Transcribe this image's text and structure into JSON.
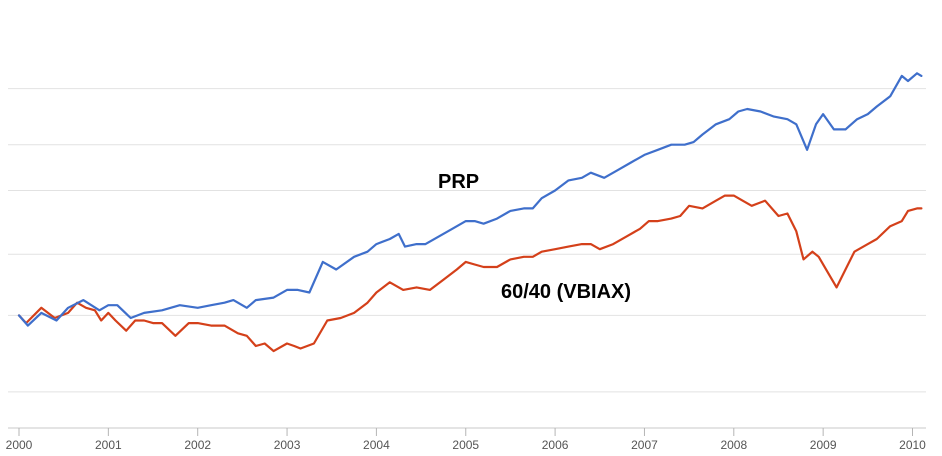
{
  "chart_data": {
    "type": "line",
    "title": "",
    "xlabel": "",
    "ylabel": "",
    "x_ticks": [
      "2000",
      "2001",
      "2002",
      "2003",
      "2004",
      "2005",
      "2006",
      "2007",
      "2008",
      "2009",
      "2010"
    ],
    "xlim": [
      2000.0,
      2010.15
    ],
    "ylim": [
      60,
      215
    ],
    "y_gridlines": [
      73,
      103,
      127,
      152,
      170,
      192
    ],
    "grid": true,
    "legend": "none (series labelled inline on the plot)",
    "series": [
      {
        "name": "PRP",
        "color": "#3f6fcb",
        "label": "PRP",
        "points": [
          [
            2000.0,
            103
          ],
          [
            2000.1,
            99
          ],
          [
            2000.25,
            104
          ],
          [
            2000.42,
            101
          ],
          [
            2000.55,
            106
          ],
          [
            2000.72,
            109
          ],
          [
            2000.9,
            105
          ],
          [
            2001.0,
            107
          ],
          [
            2001.1,
            107
          ],
          [
            2001.25,
            102
          ],
          [
            2001.4,
            104
          ],
          [
            2001.6,
            105
          ],
          [
            2001.8,
            107
          ],
          [
            2002.0,
            106
          ],
          [
            2002.15,
            107
          ],
          [
            2002.3,
            108
          ],
          [
            2002.4,
            109
          ],
          [
            2002.55,
            106
          ],
          [
            2002.65,
            109
          ],
          [
            2002.85,
            110
          ],
          [
            2003.0,
            113
          ],
          [
            2003.12,
            113
          ],
          [
            2003.25,
            112
          ],
          [
            2003.4,
            124
          ],
          [
            2003.55,
            121
          ],
          [
            2003.75,
            126
          ],
          [
            2003.9,
            128
          ],
          [
            2004.0,
            131
          ],
          [
            2004.15,
            133
          ],
          [
            2004.25,
            135
          ],
          [
            2004.32,
            130
          ],
          [
            2004.45,
            131
          ],
          [
            2004.55,
            131
          ],
          [
            2004.7,
            134
          ],
          [
            2004.85,
            137
          ],
          [
            2005.0,
            140
          ],
          [
            2005.1,
            140
          ],
          [
            2005.2,
            139
          ],
          [
            2005.35,
            141
          ],
          [
            2005.5,
            144
          ],
          [
            2005.65,
            145
          ],
          [
            2005.75,
            145
          ],
          [
            2005.85,
            149
          ],
          [
            2006.0,
            152
          ],
          [
            2006.15,
            156
          ],
          [
            2006.3,
            157
          ],
          [
            2006.4,
            159
          ],
          [
            2006.55,
            157
          ],
          [
            2006.7,
            160
          ],
          [
            2006.85,
            163
          ],
          [
            2007.0,
            166
          ],
          [
            2007.15,
            168
          ],
          [
            2007.3,
            170
          ],
          [
            2007.45,
            170
          ],
          [
            2007.55,
            171
          ],
          [
            2007.65,
            174
          ],
          [
            2007.8,
            178
          ],
          [
            2007.95,
            180
          ],
          [
            2008.05,
            183
          ],
          [
            2008.15,
            184
          ],
          [
            2008.3,
            183
          ],
          [
            2008.45,
            181
          ],
          [
            2008.6,
            180
          ],
          [
            2008.7,
            178
          ],
          [
            2008.82,
            168
          ],
          [
            2008.92,
            178
          ],
          [
            2009.0,
            182
          ],
          [
            2009.12,
            176
          ],
          [
            2009.25,
            176
          ],
          [
            2009.38,
            180
          ],
          [
            2009.5,
            182
          ],
          [
            2009.6,
            185
          ],
          [
            2009.75,
            189
          ],
          [
            2009.88,
            197
          ],
          [
            2009.95,
            195
          ],
          [
            2010.05,
            198
          ],
          [
            2010.1,
            197
          ]
        ]
      },
      {
        "name": "60/40 (VBIAX)",
        "color": "#d4401a",
        "label": "60/40 (VBIAX)",
        "points": [
          [
            2000.0,
            103
          ],
          [
            2000.08,
            100
          ],
          [
            2000.25,
            106
          ],
          [
            2000.4,
            102
          ],
          [
            2000.55,
            104
          ],
          [
            2000.65,
            108
          ],
          [
            2000.75,
            106
          ],
          [
            2000.85,
            105
          ],
          [
            2000.92,
            101
          ],
          [
            2001.0,
            104
          ],
          [
            2001.08,
            101
          ],
          [
            2001.2,
            97
          ],
          [
            2001.3,
            101
          ],
          [
            2001.4,
            101
          ],
          [
            2001.5,
            100
          ],
          [
            2001.6,
            100
          ],
          [
            2001.75,
            95
          ],
          [
            2001.9,
            100
          ],
          [
            2002.0,
            100
          ],
          [
            2002.15,
            99
          ],
          [
            2002.3,
            99
          ],
          [
            2002.45,
            96
          ],
          [
            2002.55,
            95
          ],
          [
            2002.65,
            91
          ],
          [
            2002.75,
            92
          ],
          [
            2002.85,
            89
          ],
          [
            2003.0,
            92
          ],
          [
            2003.08,
            91
          ],
          [
            2003.15,
            90
          ],
          [
            2003.3,
            92
          ],
          [
            2003.45,
            101
          ],
          [
            2003.6,
            102
          ],
          [
            2003.75,
            104
          ],
          [
            2003.9,
            108
          ],
          [
            2004.0,
            112
          ],
          [
            2004.15,
            116
          ],
          [
            2004.3,
            113
          ],
          [
            2004.45,
            114
          ],
          [
            2004.6,
            113
          ],
          [
            2004.75,
            117
          ],
          [
            2004.9,
            121
          ],
          [
            2005.0,
            124
          ],
          [
            2005.1,
            123
          ],
          [
            2005.2,
            122
          ],
          [
            2005.35,
            122
          ],
          [
            2005.5,
            125
          ],
          [
            2005.65,
            126
          ],
          [
            2005.75,
            126
          ],
          [
            2005.85,
            128
          ],
          [
            2006.0,
            129
          ],
          [
            2006.15,
            130
          ],
          [
            2006.3,
            131
          ],
          [
            2006.4,
            131
          ],
          [
            2006.5,
            129
          ],
          [
            2006.65,
            131
          ],
          [
            2006.8,
            134
          ],
          [
            2006.95,
            137
          ],
          [
            2007.05,
            140
          ],
          [
            2007.15,
            140
          ],
          [
            2007.3,
            141
          ],
          [
            2007.4,
            142
          ],
          [
            2007.5,
            146
          ],
          [
            2007.65,
            145
          ],
          [
            2007.8,
            148
          ],
          [
            2007.9,
            150
          ],
          [
            2008.0,
            150
          ],
          [
            2008.1,
            148
          ],
          [
            2008.2,
            146
          ],
          [
            2008.35,
            148
          ],
          [
            2008.5,
            142
          ],
          [
            2008.6,
            143
          ],
          [
            2008.7,
            136
          ],
          [
            2008.78,
            125
          ],
          [
            2008.88,
            128
          ],
          [
            2008.95,
            126
          ],
          [
            2009.05,
            120
          ],
          [
            2009.15,
            114
          ],
          [
            2009.25,
            121
          ],
          [
            2009.35,
            128
          ],
          [
            2009.5,
            131
          ],
          [
            2009.6,
            133
          ],
          [
            2009.75,
            138
          ],
          [
            2009.88,
            140
          ],
          [
            2009.95,
            144
          ],
          [
            2010.05,
            145
          ],
          [
            2010.1,
            145
          ]
        ]
      }
    ]
  }
}
